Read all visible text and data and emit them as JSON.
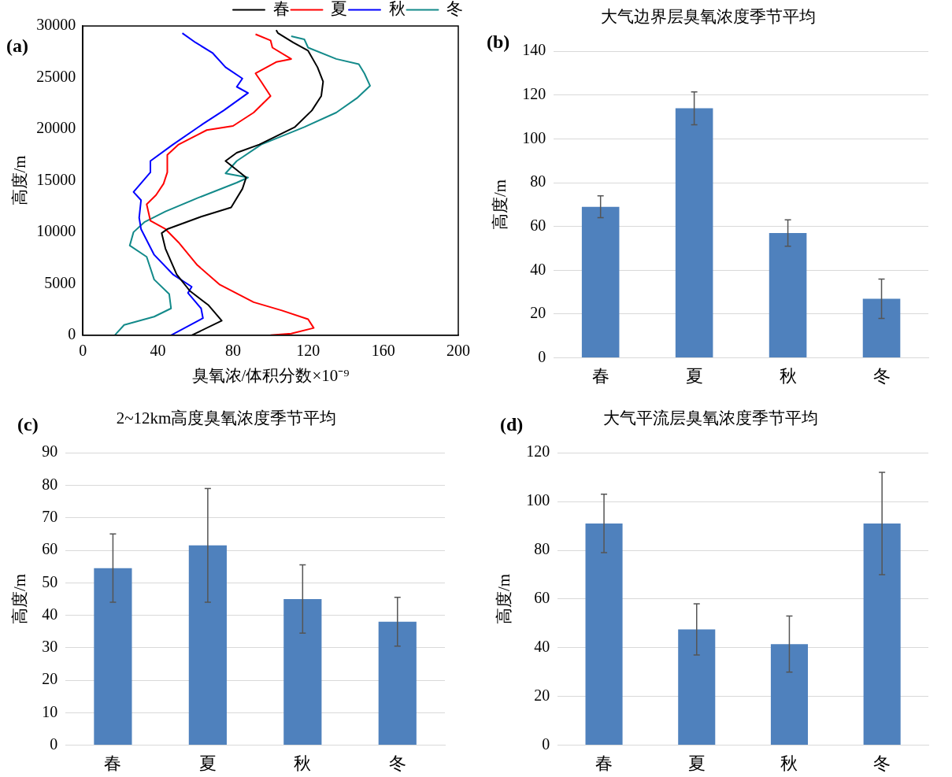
{
  "chart_data": [
    {
      "type": "line",
      "annotations": [
        "(a)"
      ],
      "xlabel": "臭氧浓/体积分数×10⁻⁹",
      "ylabel": "高度/m",
      "xlim": [
        0,
        200
      ],
      "xticks": [
        0,
        40,
        80,
        120,
        160,
        200
      ],
      "ylim": [
        0,
        30000
      ],
      "yticks": [
        0,
        5000,
        10000,
        15000,
        20000,
        25000,
        30000
      ],
      "grid": false,
      "legend": "top right",
      "marker": "none",
      "line_style": "solid",
      "series": [
        {
          "name": "春",
          "color": "#000000",
          "x": [
            58,
            74,
            67,
            57,
            50,
            44,
            42,
            45,
            63,
            79,
            85,
            87,
            76,
            82,
            94,
            113,
            122,
            127,
            128,
            125,
            120,
            112,
            104,
            103
          ],
          "values": [
            0,
            1400,
            2900,
            4300,
            5900,
            8400,
            9900,
            10300,
            11500,
            12400,
            14200,
            15300,
            16900,
            17700,
            18500,
            20200,
            21800,
            23200,
            24600,
            26000,
            27600,
            28400,
            29300,
            29600
          ]
        },
        {
          "name": "夏",
          "color": "#ff0000",
          "x": [
            100,
            111,
            123,
            120,
            106,
            91,
            73,
            61,
            51,
            44,
            36,
            34,
            39,
            43,
            45,
            45,
            51,
            66,
            80,
            91,
            100,
            95,
            92,
            103,
            111,
            101,
            100,
            92
          ],
          "values": [
            0,
            150,
            700,
            1550,
            2400,
            3200,
            4900,
            6800,
            9000,
            10300,
            11100,
            12700,
            13600,
            14700,
            15800,
            17500,
            18500,
            19900,
            20300,
            21600,
            23200,
            24600,
            25400,
            26500,
            26800,
            27900,
            28600,
            29200
          ]
        },
        {
          "name": "秋",
          "color": "#0000ff",
          "x": [
            47,
            64,
            63,
            56,
            58,
            48,
            38,
            31,
            30,
            31,
            27,
            36,
            36,
            48,
            64,
            75,
            88,
            82,
            85,
            76,
            69,
            60,
            53
          ],
          "values": [
            0,
            1650,
            2600,
            4100,
            4700,
            5900,
            7800,
            10300,
            11400,
            13100,
            13900,
            15800,
            16900,
            18500,
            20500,
            21800,
            23500,
            24100,
            24900,
            26000,
            27400,
            28400,
            29300
          ]
        },
        {
          "name": "冬",
          "color": "#138a8a",
          "x": [
            17,
            22,
            38,
            47,
            46,
            38,
            34,
            25,
            27,
            33,
            44,
            61,
            82,
            88,
            76,
            82,
            95,
            118,
            135,
            146,
            153,
            150,
            147,
            135,
            120,
            118,
            111
          ],
          "values": [
            0,
            1000,
            1800,
            2600,
            4000,
            5400,
            7600,
            8700,
            10000,
            11000,
            12000,
            13300,
            14800,
            15300,
            15700,
            16900,
            18500,
            20200,
            21600,
            23000,
            24200,
            25400,
            26300,
            26800,
            27900,
            28700,
            29000
          ]
        }
      ]
    },
    {
      "type": "bar",
      "annotations": [
        "(b)"
      ],
      "title": "大气边界层臭氧浓度季节平均",
      "ylabel": "高度/m",
      "categories": [
        "春",
        "夏",
        "秋",
        "冬"
      ],
      "values": [
        69,
        114,
        57,
        27
      ],
      "errors": [
        5,
        7.5,
        6,
        9
      ],
      "color": "#4f81bd",
      "ylim": [
        0,
        140
      ],
      "yticks": [
        0,
        20,
        40,
        60,
        80,
        100,
        120,
        140
      ],
      "grid": "y",
      "legend": false
    },
    {
      "type": "bar",
      "annotations": [
        "(c)"
      ],
      "title": "2~12km高度臭氧浓度季节平均",
      "ylabel": "高度/m",
      "categories": [
        "春",
        "夏",
        "秋",
        "冬"
      ],
      "values": [
        54.5,
        61.5,
        45,
        38
      ],
      "errors": [
        10.5,
        17.5,
        10.5,
        7.5
      ],
      "color": "#4f81bd",
      "ylim": [
        0,
        90
      ],
      "yticks": [
        0,
        10,
        20,
        30,
        40,
        50,
        60,
        70,
        80,
        90
      ],
      "grid": "y",
      "legend": false
    },
    {
      "type": "bar",
      "annotations": [
        "(d)"
      ],
      "title": "大气平流层臭氧浓度季节平均",
      "ylabel": "高度/m",
      "categories": [
        "春",
        "夏",
        "秋",
        "冬"
      ],
      "values": [
        91,
        47.5,
        41.5,
        91
      ],
      "errors": [
        12,
        10.5,
        11.5,
        21
      ],
      "color": "#4f81bd",
      "ylim": [
        0,
        120
      ],
      "yticks": [
        0,
        20,
        40,
        60,
        80,
        100,
        120
      ],
      "grid": "y",
      "legend": false
    }
  ]
}
